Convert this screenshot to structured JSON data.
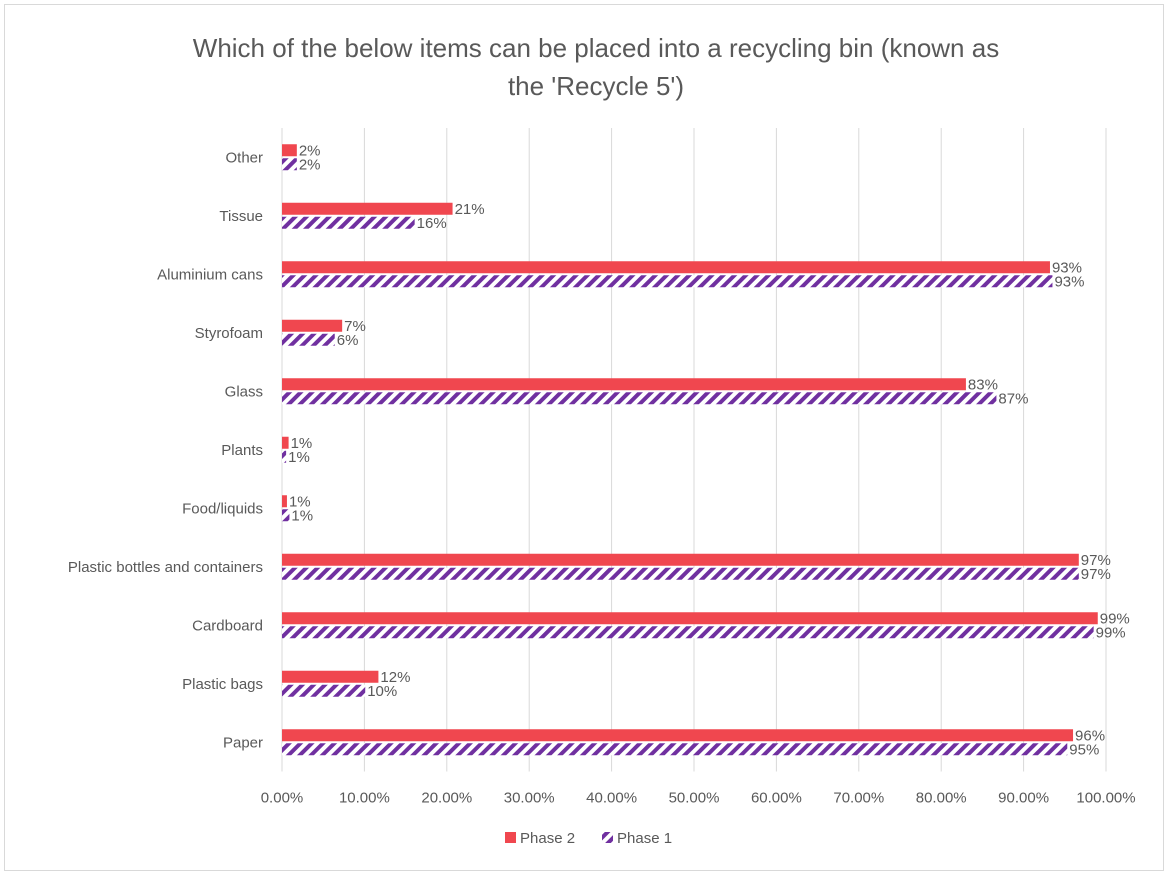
{
  "chart_data": {
    "type": "bar",
    "orientation": "horizontal",
    "title": "Which of the below items can be placed into a recycling bin (known as the 'Recycle 5')",
    "title_lines": [
      "Which of the below items can be placed into a recycling bin (known as",
      "the 'Recycle 5')"
    ],
    "categories": [
      "Other",
      "Tissue",
      "Aluminium cans",
      "Styrofoam",
      "Glass",
      "Plants",
      "Food/liquids",
      "Plastic bottles and containers",
      "Cardboard",
      "Plastic bags",
      "Paper"
    ],
    "series": [
      {
        "name": "Phase 2",
        "color": "#f0474f",
        "pattern": "solid",
        "values": [
          0.018,
          0.207,
          0.932,
          0.073,
          0.83,
          0.008,
          0.006,
          0.967,
          0.99,
          0.117,
          0.96
        ],
        "labels": [
          "2%",
          "21%",
          "93%",
          "7%",
          "83%",
          "1%",
          "1%",
          "97%",
          "99%",
          "12%",
          "96%"
        ]
      },
      {
        "name": "Phase 1",
        "color": "#7030a0",
        "pattern": "diagonal-stripes",
        "values": [
          0.018,
          0.161,
          0.935,
          0.064,
          0.867,
          0.005,
          0.009,
          0.967,
          0.985,
          0.101,
          0.953
        ],
        "labels": [
          "2%",
          "16%",
          "93%",
          "6%",
          "87%",
          "1%",
          "1%",
          "97%",
          "99%",
          "10%",
          "95%"
        ]
      }
    ],
    "xlim": [
      0,
      1
    ],
    "x_ticks": [
      0,
      0.1,
      0.2,
      0.3,
      0.4,
      0.5,
      0.6,
      0.7,
      0.8,
      0.9,
      1.0
    ],
    "x_tick_labels": [
      "0.00%",
      "10.00%",
      "20.00%",
      "30.00%",
      "40.00%",
      "50.00%",
      "60.00%",
      "70.00%",
      "80.00%",
      "90.00%",
      "100.00%"
    ],
    "xlabel": "",
    "ylabel": "",
    "grid": "vertical",
    "legend_position": "bottom"
  }
}
